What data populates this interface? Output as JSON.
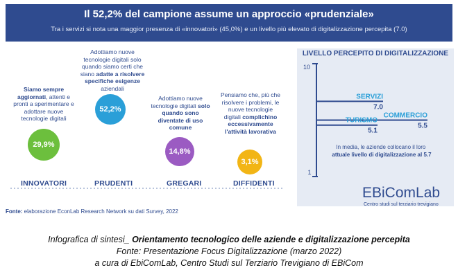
{
  "banner": {
    "title": "Il 52,2% del campione assume un approccio «prudenziale»",
    "subtitle": "Tra i servizi si nota una maggior presenza di «innovatori» (45,0%) e un livello più elevato di digitalizzazione percepita (7.0)"
  },
  "segments": [
    {
      "label": "INNOVATORI",
      "value": "29,9%",
      "color": "#6cbf3d",
      "desc_pre": "",
      "desc_bold": "Siamo sempre aggiornati",
      "desc_post": ", attenti e pronti a sperimentare e adottare nuove tecnologie digitali"
    },
    {
      "label": "PRUDENTI",
      "value": "52,2%",
      "color": "#2a9fd8",
      "desc_pre": "Adottiamo nuove tecnologie digitali solo quando siamo certi che siano ",
      "desc_bold": "adatte a risolvere specifiche esigenze",
      "desc_post": " aziendali"
    },
    {
      "label": "GREGARI",
      "value": "14,8%",
      "color": "#9b5bc2",
      "desc_pre": "Adottiamo nuove tecnologie digitali ",
      "desc_bold": "solo quando sono diventate di uso comune",
      "desc_post": ""
    },
    {
      "label": "DIFFIDENTI",
      "value": "3,1%",
      "color": "#f2b515",
      "desc_pre": "Pensiamo che, più che risolvere i problemi, le nuove tecnologie digitali ",
      "desc_bold": "complichino eccessivamente l'attività lavorativa",
      "desc_post": ""
    }
  ],
  "chart_data": [
    {
      "type": "bar",
      "title": "",
      "categories": [
        "INNOVATORI",
        "PRUDENTI",
        "GREGARI",
        "DIFFIDENTI"
      ],
      "values": [
        29.9,
        52.2,
        14.8,
        3.1
      ],
      "value_labels": [
        "29,9%",
        "52,2%",
        "14,8%",
        "3,1%"
      ],
      "ylabel": "",
      "xlabel": ""
    },
    {
      "type": "bar",
      "title": "LIVELLO PERCEPITO DI DIGITALIZZAZIONE",
      "categories": [
        "SERVIZI",
        "COMMERCIO",
        "TURISMO"
      ],
      "values": [
        7.0,
        5.5,
        5.1
      ],
      "value_labels": [
        "7.0",
        "5.5",
        "5.1"
      ],
      "ylim": [
        1,
        10
      ],
      "tick_labels": [
        "10",
        "1"
      ],
      "annotation_pre": "In media, le aziende collocano il loro ",
      "annotation_bold": "attuale livello di digitalizzazione al 5.7"
    }
  ],
  "logo": {
    "name": "EBiComLab",
    "tagline": "Centro studi sul terziario trevigiano"
  },
  "fonte": {
    "label": "Fonte:",
    "text": "elaborazione EconLab Research Network su dati Survey, 2022"
  },
  "caption": {
    "line1_pre": "Infografica di sintesi_ ",
    "line1_bold": "Orientamento tecnologico delle aziende e digitalizzazione percepita",
    "line2": "Fonte: Presentazione Focus Digitalizzazione (marzo 2022)",
    "line3": "a cura di EbiComLab, Centro Studi sul Terziario Trevigiano di EBiCom"
  },
  "colors": {
    "navy": "#2f4b8f",
    "panel": "#e6ebf4"
  }
}
